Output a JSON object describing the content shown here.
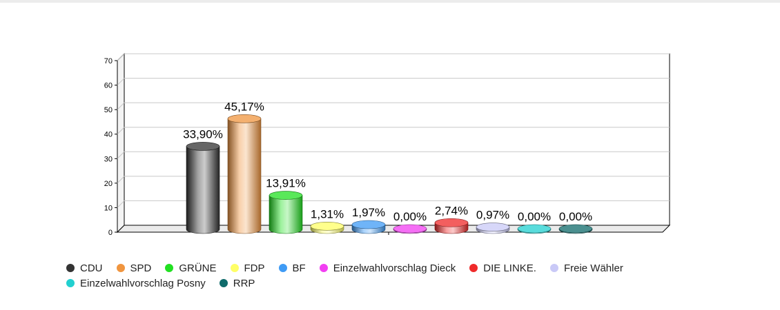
{
  "chart_data": {
    "type": "bar",
    "title": "",
    "xlabel": "",
    "ylabel": "",
    "ylim": [
      0,
      70
    ],
    "yticks": [
      "0",
      "10",
      "20",
      "30",
      "40",
      "50",
      "60",
      "70"
    ],
    "grid": true,
    "legend_position": "bottom",
    "categories": [
      "CDU",
      "SPD",
      "GRÜNE",
      "FDP",
      "BF",
      "Einzelwahlvorschlag Dieck",
      "DIE LINKE.",
      "Freie Wähler",
      "Einzelwahlvorschlag Posny",
      "RRP"
    ],
    "values": [
      33.9,
      45.17,
      13.91,
      1.31,
      1.97,
      0.0,
      2.74,
      0.97,
      0.0,
      0.0
    ],
    "value_labels": [
      "33,90%",
      "45,17%",
      "13,91%",
      "1,31%",
      "1,97%",
      "0,00%",
      "2,74%",
      "0,97%",
      "0,00%",
      "0,00%"
    ],
    "colors": [
      "#333333",
      "#f0953f",
      "#22e022",
      "#ffff66",
      "#3f9bf5",
      "#f23ff2",
      "#ef2a2a",
      "#c9c9f7",
      "#22d0d0",
      "#0f6b6b"
    ]
  }
}
